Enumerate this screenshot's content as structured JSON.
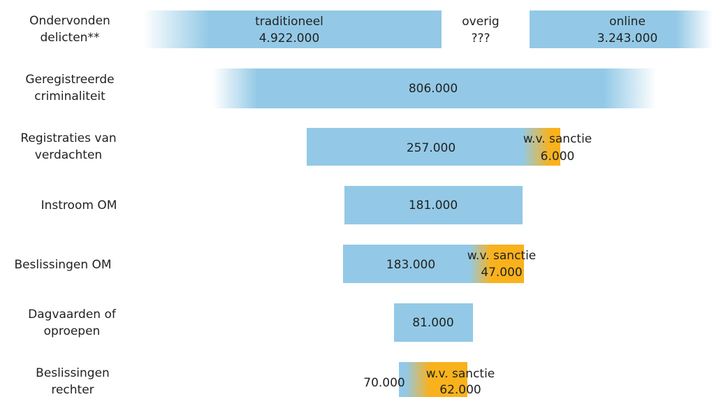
{
  "rows": [
    {
      "label": [
        "Ondervonden",
        "delicten**"
      ],
      "segments": [
        {
          "lines": [
            "traditioneel",
            "4.922.000"
          ]
        },
        {
          "lines": [
            "overig",
            "???"
          ]
        },
        {
          "lines": [
            "online",
            "3.243.000"
          ]
        }
      ]
    },
    {
      "label": [
        "Geregistreerde",
        "criminaliteit"
      ],
      "segments": [
        {
          "lines": [
            "806.000"
          ]
        }
      ]
    },
    {
      "label": [
        "Registraties van",
        "verdachten"
      ],
      "segments": [
        {
          "lines": [
            "257.000"
          ]
        },
        {
          "lines": [
            "w.v. sanctie",
            "6.000"
          ]
        }
      ]
    },
    {
      "label": [
        "Instroom OM"
      ],
      "segments": [
        {
          "lines": [
            "181.000"
          ]
        }
      ]
    },
    {
      "label": [
        "Beslissingen OM"
      ],
      "segments": [
        {
          "lines": [
            "183.000"
          ]
        },
        {
          "lines": [
            "w.v. sanctie",
            "47.000"
          ]
        }
      ]
    },
    {
      "label": [
        "Dagvaarden of",
        "oproepen"
      ],
      "segments": [
        {
          "lines": [
            "81.000"
          ]
        }
      ]
    },
    {
      "label": [
        "Beslissingen",
        "rechter"
      ],
      "segments": [
        {
          "lines": [
            "70.000"
          ]
        },
        {
          "lines": [
            "w.v. sanctie",
            "62.000"
          ]
        }
      ]
    }
  ]
}
